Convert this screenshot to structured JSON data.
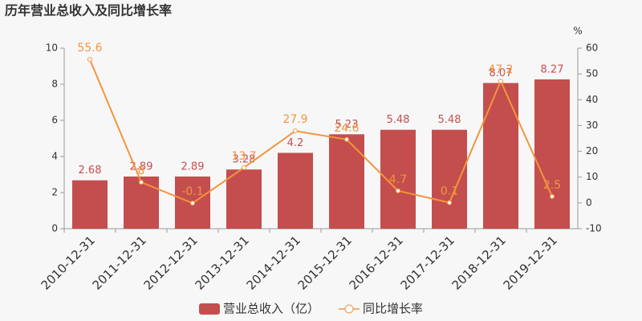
{
  "chart_data": {
    "type": "bar",
    "title": "历年营业总收入及同比增长率",
    "categories": [
      "2010-12-31",
      "2011-12-31",
      "2012-12-31",
      "2013-12-31",
      "2014-12-31",
      "2015-12-31",
      "2016-12-31",
      "2017-12-31",
      "2018-12-31",
      "2019-12-31"
    ],
    "series": [
      {
        "name": "营业总收入（亿）",
        "type": "bar",
        "color": "#c44e4e",
        "values": [
          2.68,
          2.89,
          2.89,
          3.28,
          4.2,
          5.23,
          5.48,
          5.48,
          8.07,
          8.27
        ]
      },
      {
        "name": "同比增长率",
        "type": "line",
        "axis": "y2",
        "color": "#f0963c",
        "values": [
          55.6,
          8,
          -0.1,
          13.7,
          27.9,
          24.6,
          4.7,
          0.1,
          47.2,
          2.5
        ]
      }
    ],
    "ylim": [
      0,
      10
    ],
    "yticks": [
      0,
      2,
      4,
      6,
      8,
      10
    ],
    "y2lim": [
      -10,
      60
    ],
    "y2ticks": [
      -10,
      0,
      10,
      20,
      30,
      40,
      50,
      60
    ],
    "y2label": "%",
    "legend": "bottom"
  }
}
